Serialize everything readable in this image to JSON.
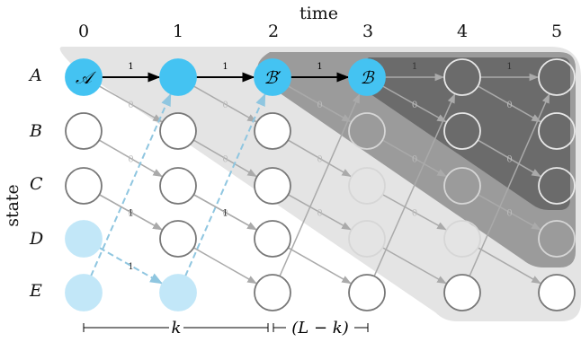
{
  "axis": {
    "time_label": "time",
    "state_label": "state",
    "time_ticks": [
      "0",
      "1",
      "2",
      "3",
      "4",
      "5"
    ],
    "state_ticks": [
      "A",
      "B",
      "C",
      "D",
      "E"
    ]
  },
  "node_labels": {
    "A0": "𝒜",
    "A2": "ℬ′",
    "A3": "ℬ"
  },
  "edge_weight_labels": {
    "one": "1",
    "zero": "0"
  },
  "brackets": {
    "k_label": "k",
    "lk_label": "(L − k)"
  },
  "colors": {
    "highlight_node": "#44c3f2",
    "light_node": "#c2e7f8",
    "region_light": "#e4e4e4",
    "region_mid": "#9b9b9b",
    "region_dark": "#6b6b6b",
    "path_edge": "#000000",
    "grey_edge": "#aaaaaa",
    "dashed_edge": "#8fc6e0"
  }
}
